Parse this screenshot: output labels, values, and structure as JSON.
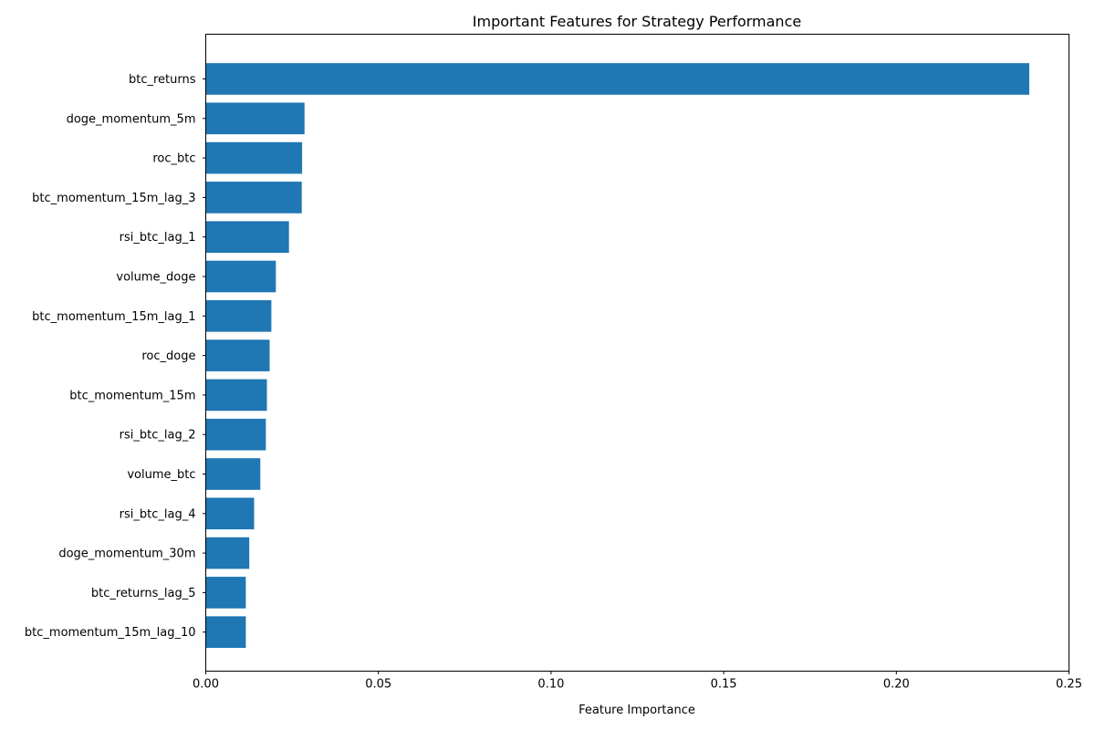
{
  "chart_data": {
    "type": "bar",
    "orientation": "horizontal",
    "title": "Important Features for Strategy Performance",
    "xlabel": "Feature Importance",
    "ylabel": "",
    "xlim": [
      0,
      0.25
    ],
    "xticks": [
      0.0,
      0.05,
      0.1,
      0.15,
      0.2,
      0.25
    ],
    "xtick_labels": [
      "0.00",
      "0.05",
      "0.10",
      "0.15",
      "0.20",
      "0.25"
    ],
    "grid": false,
    "bar_color": "#1f77b4",
    "categories": [
      "btc_returns",
      "doge_momentum_5m",
      "roc_btc",
      "btc_momentum_15m_lag_3",
      "rsi_btc_lag_1",
      "volume_doge",
      "btc_momentum_15m_lag_1",
      "roc_doge",
      "btc_momentum_15m",
      "rsi_btc_lag_2",
      "volume_btc",
      "rsi_btc_lag_4",
      "doge_momentum_30m",
      "btc_returns_lag_5",
      "btc_momentum_15m_lag_10"
    ],
    "values": [
      0.2385,
      0.0286,
      0.0279,
      0.0278,
      0.0241,
      0.0203,
      0.019,
      0.0185,
      0.0177,
      0.0174,
      0.0158,
      0.014,
      0.0126,
      0.0116,
      0.0116
    ]
  }
}
